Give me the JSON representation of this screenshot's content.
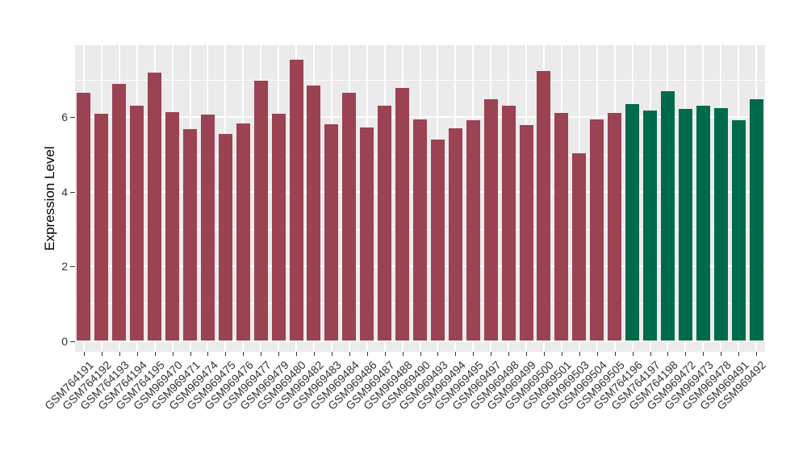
{
  "panel_style": {
    "background": "#EBEBEB",
    "gridline_color": "#FFFFFF",
    "tick_color": "#333333"
  },
  "chart_data": {
    "type": "bar",
    "title": "",
    "xlabel": "",
    "ylabel": "Expression Level",
    "ylim": [
      0,
      7.93
    ],
    "y_ticks": [
      0,
      2,
      4,
      6
    ],
    "y_minor_ticks": [
      1,
      3,
      5,
      7
    ],
    "grid": "on",
    "legend_position": "none",
    "colors": {
      "red": "#9B4253",
      "green": "#006A4C"
    },
    "categories": [
      "GSM764191",
      "GSM764192",
      "GSM764193",
      "GSM764194",
      "GSM764195",
      "GSM969470",
      "GSM969471",
      "GSM969474",
      "GSM969475",
      "GSM969476",
      "GSM969477",
      "GSM969479",
      "GSM969480",
      "GSM969482",
      "GSM969483",
      "GSM969484",
      "GSM969486",
      "GSM969487",
      "GSM969488",
      "GSM969490",
      "GSM969493",
      "GSM969494",
      "GSM969495",
      "GSM969497",
      "GSM969498",
      "GSM969499",
      "GSM969500",
      "GSM969501",
      "GSM969503",
      "GSM969504",
      "GSM969505",
      "GSM764196",
      "GSM764197",
      "GSM764198",
      "GSM969472",
      "GSM969473",
      "GSM969478",
      "GSM969491",
      "GSM969492"
    ],
    "values": [
      6.65,
      6.09,
      6.9,
      6.32,
      7.19,
      6.13,
      5.69,
      6.08,
      5.55,
      5.83,
      6.99,
      6.09,
      7.54,
      6.86,
      5.82,
      6.65,
      5.73,
      6.32,
      6.79,
      5.95,
      5.41,
      5.7,
      5.91,
      6.48,
      6.3,
      5.78,
      7.25,
      6.11,
      5.04,
      5.94,
      6.11,
      6.35,
      6.18,
      6.69,
      6.22,
      6.31,
      6.24,
      5.91,
      6.49
    ],
    "groups": [
      "red",
      "red",
      "red",
      "red",
      "red",
      "red",
      "red",
      "red",
      "red",
      "red",
      "red",
      "red",
      "red",
      "red",
      "red",
      "red",
      "red",
      "red",
      "red",
      "red",
      "red",
      "red",
      "red",
      "red",
      "red",
      "red",
      "red",
      "red",
      "red",
      "red",
      "red",
      "green",
      "green",
      "green",
      "green",
      "green",
      "green",
      "green",
      "green"
    ]
  }
}
